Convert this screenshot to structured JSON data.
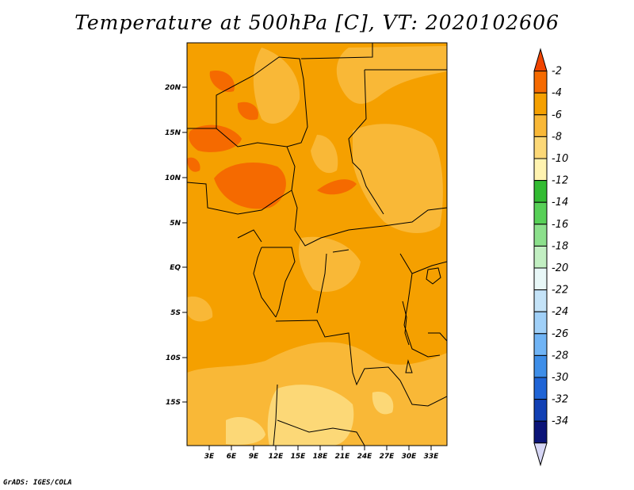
{
  "title": "Temperature at 500hPa [C], VT: 2020102606",
  "credit": "GrADS: IGES/COLA",
  "map": {
    "lat_labels": [
      "20N",
      "15N",
      "10N",
      "5N",
      "EQ",
      "5S",
      "10S",
      "15S"
    ],
    "lon_labels": [
      "3E",
      "6E",
      "9E",
      "12E",
      "15E",
      "18E",
      "21E",
      "24E",
      "27E",
      "30E",
      "33E"
    ],
    "dominant_fill": "#f5a000"
  },
  "colorbar": {
    "labels": [
      "-2",
      "-4",
      "-6",
      "-8",
      "-10",
      "-12",
      "-14",
      "-16",
      "-18",
      "-20",
      "-22",
      "-24",
      "-26",
      "-28",
      "-30",
      "-32",
      "-34"
    ],
    "colors": [
      "#f04400",
      "#f56a00",
      "#f5a000",
      "#f9b837",
      "#fcd877",
      "#fff3b0",
      "#32bb32",
      "#57d057",
      "#8ce08c",
      "#c2efc2",
      "#e8f7f7",
      "#c4e3f8",
      "#a0d0f8",
      "#70b4f5",
      "#3e8ee8",
      "#1f64d6",
      "#1140b4",
      "#0b1478",
      "#d6d6f5"
    ]
  }
}
